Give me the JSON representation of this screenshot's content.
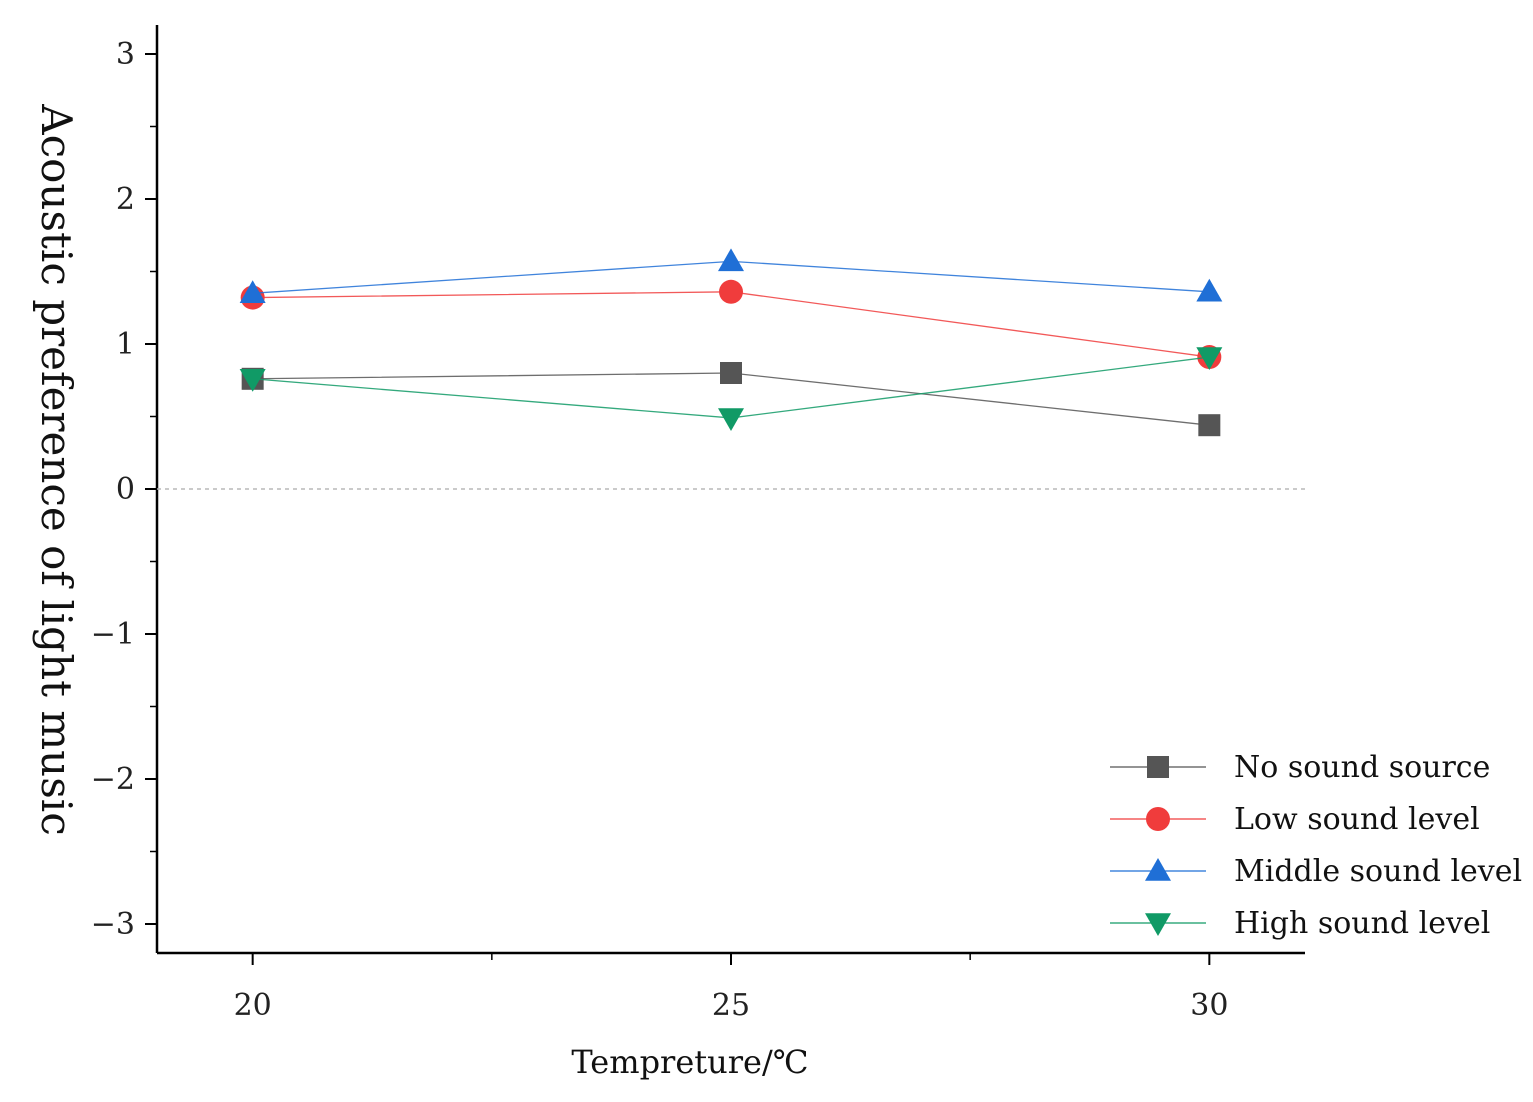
{
  "chart_data": {
    "type": "line",
    "title": "",
    "xlabel": "Tempreture/℃",
    "ylabel": "Acoustic preference of light music",
    "x": [
      20,
      25,
      30
    ],
    "xlim": [
      19,
      31
    ],
    "ylim": [
      -3.2,
      3.2
    ],
    "x_ticks": [
      20,
      25,
      30
    ],
    "y_ticks": [
      3,
      2,
      1,
      0,
      -1,
      -2,
      -3
    ],
    "x_tick_labels": [
      "20",
      "25",
      "30"
    ],
    "y_tick_labels": [
      "3",
      "2",
      "1",
      "0",
      "−1",
      "−2",
      "−3"
    ],
    "zero_line": true,
    "grid": false,
    "legend_position": "bottom-right",
    "series": [
      {
        "name": "No sound source",
        "values": [
          0.76,
          0.8,
          0.44
        ],
        "color": "#555555",
        "marker": "square"
      },
      {
        "name": "Low sound level",
        "values": [
          1.32,
          1.36,
          0.91
        ],
        "color": "#f03c3c",
        "marker": "circle"
      },
      {
        "name": "Middle sound level",
        "values": [
          1.35,
          1.57,
          1.36
        ],
        "color": "#1f6fd6",
        "marker": "triangle-up"
      },
      {
        "name": "High sound level",
        "values": [
          0.76,
          0.49,
          0.91
        ],
        "color": "#109a66",
        "marker": "triangle-down"
      }
    ]
  }
}
